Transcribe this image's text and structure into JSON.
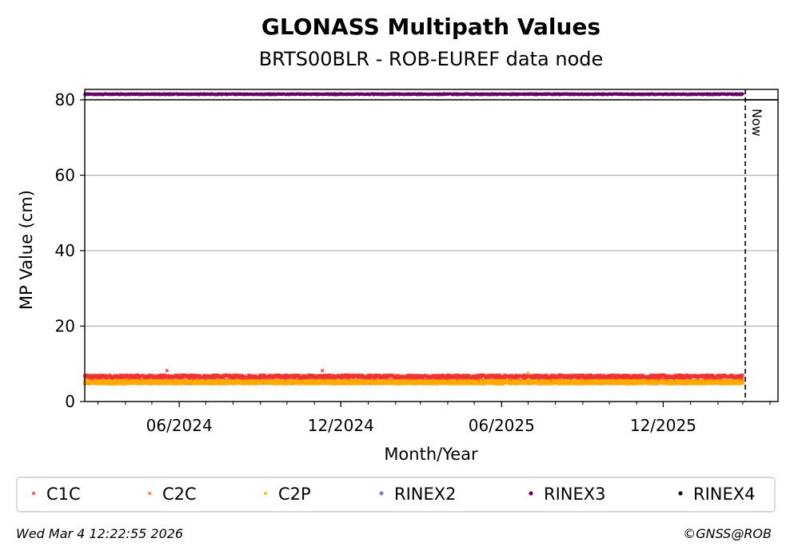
{
  "chart_data": {
    "type": "scatter",
    "title": "GLONASS Multipath Values",
    "subtitle": "BRTS00BLR - ROB-EUREF data node",
    "xlabel": "Month/Year",
    "ylabel": "MP Value (cm)",
    "x_range": [
      "2024-02-15",
      "2026-04-10"
    ],
    "ylim": [
      0,
      80
    ],
    "y_ticks": [
      0,
      20,
      40,
      60,
      80
    ],
    "x_ticks": [
      {
        "date": "2024-06-01",
        "label": "06/2024"
      },
      {
        "date": "2024-12-01",
        "label": "12/2024"
      },
      {
        "date": "2025-06-01",
        "label": "06/2025"
      },
      {
        "date": "2025-12-01",
        "label": "12/2025"
      }
    ],
    "grid": "horizontal",
    "now_marker": {
      "date": "2026-03-04",
      "label": "Now"
    },
    "series": [
      {
        "name": "C1C",
        "marker": "x",
        "color": "#ee3333",
        "date_range": [
          "2024-02-15",
          "2026-03-01"
        ],
        "mean": 6.6,
        "spikes": [
          {
            "date": "2024-05-18",
            "value": 8.2
          },
          {
            "date": "2024-11-10",
            "value": 8.2
          }
        ]
      },
      {
        "name": "C2C",
        "marker": "x",
        "color": "#ff6611",
        "date_range": [
          "2024-02-15",
          "2026-03-01"
        ],
        "mean": 5.2
      },
      {
        "name": "C2P",
        "marker": "x",
        "color": "#ffaa00",
        "date_range": [
          "2024-02-15",
          "2026-03-01"
        ],
        "mean": 5.1,
        "spikes": [
          {
            "date": "2025-07-01",
            "value": 7.5
          }
        ]
      },
      {
        "name": "RINEX2",
        "marker": "o",
        "color": "#8080c0"
      },
      {
        "name": "RINEX3",
        "marker": "o",
        "color": "#660066",
        "date_range": [
          "2024-02-15",
          "2026-03-01"
        ],
        "band": "top"
      },
      {
        "name": "RINEX4",
        "marker": "o",
        "color": "#200020"
      }
    ],
    "legend_position": "bottom"
  },
  "footer": {
    "timestamp": "Wed Mar  4 12:22:55 2026",
    "credit": "©GNSS@ROB"
  }
}
